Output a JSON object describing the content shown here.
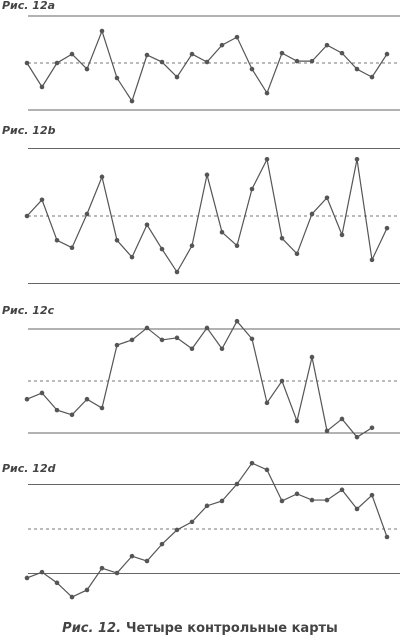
{
  "chart_data": [
    {
      "type": "line",
      "title": "Рис. 12a",
      "center_line": 0,
      "control_limits": [
        -1,
        1
      ],
      "color": "#555",
      "values": [
        0,
        -0.51,
        0,
        0.19,
        -0.13,
        0.68,
        -0.32,
        -0.81,
        0.17,
        0.02,
        -0.3,
        0.19,
        0.02,
        0.38,
        0.55,
        -0.13,
        -0.64,
        0.21,
        0.04,
        0.04,
        0.38,
        0.21,
        -0.13,
        -0.3,
        0.19
      ]
    },
    {
      "type": "line",
      "title": "Рис. 12b",
      "center_line": 0,
      "control_limits": [
        -1,
        1
      ],
      "color": "#555",
      "values": [
        0,
        0.24,
        -0.36,
        -0.47,
        0.03,
        0.58,
        -0.36,
        -0.61,
        -0.13,
        -0.49,
        -0.83,
        -0.44,
        0.61,
        -0.24,
        -0.44,
        0.4,
        0.84,
        -0.33,
        -0.56,
        0.03,
        0.27,
        -0.28,
        0.84,
        -0.65,
        -0.18
      ]
    },
    {
      "type": "line",
      "title": "Рис. 12c",
      "center_line": 0,
      "control_limits": [
        -1,
        1
      ],
      "color": "#555",
      "values": [
        -0.35,
        -0.23,
        -0.56,
        -0.65,
        -0.35,
        -0.52,
        0.69,
        0.79,
        1.02,
        0.79,
        0.83,
        0.62,
        1.02,
        0.62,
        1.15,
        0.81,
        -0.42,
        0,
        -0.77,
        0.46,
        -0.96,
        -0.73,
        -1.08,
        -0.9
      ]
    },
    {
      "type": "line",
      "title": "Рис. 12d",
      "center_line": 0,
      "control_limits": [
        -1,
        1
      ],
      "color": "#555",
      "values": [
        -1.1,
        -0.97,
        -1.21,
        -1.53,
        -1.37,
        -0.88,
        -0.99,
        -0.61,
        -0.72,
        -0.34,
        -0.02,
        0.16,
        0.52,
        0.63,
        1.01,
        1.48,
        1.33,
        0.63,
        0.79,
        0.65,
        0.65,
        0.88,
        0.45,
        0.76,
        -0.18
      ]
    }
  ],
  "caption": {
    "label": "Рис. 12.",
    "text": "Четыре контрольные карты"
  }
}
